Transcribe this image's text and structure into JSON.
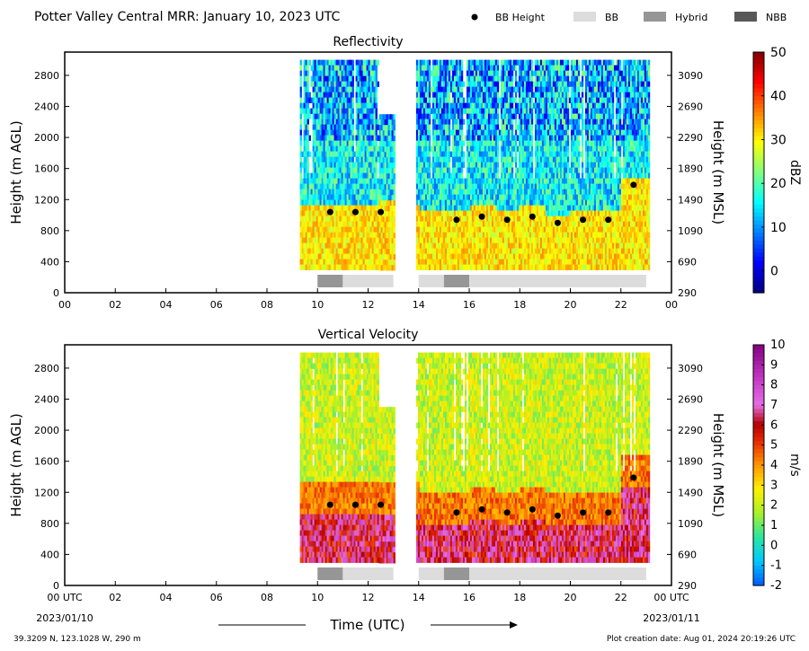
{
  "header": {
    "title": "Potter Valley Central MRR:  January 10, 2023 UTC",
    "legend": [
      {
        "label": "BB Height",
        "kind": "dot",
        "color": "#000000"
      },
      {
        "label": "BB",
        "kind": "rect",
        "color": "#dcdcdc"
      },
      {
        "label": "Hybrid",
        "kind": "rect",
        "color": "#969696"
      },
      {
        "label": "NBB",
        "kind": "rect",
        "color": "#585858"
      }
    ]
  },
  "footer": {
    "location": "39.3209 N, 123.1028 W, 290 m",
    "created": "Plot creation date: Aug 01, 2024 20:19:26 UTC",
    "xlabel": "Time (UTC)",
    "start_date": "2023/01/10",
    "end_date": "2023/01/11"
  },
  "chart_data": [
    {
      "type": "heatmap",
      "title": "Reflectivity",
      "xlabel": "Time (UTC)",
      "ylabel": "Height (m AGL)",
      "ylabel_right": "Height (m MSL)",
      "xticks": [
        "00",
        "02",
        "04",
        "06",
        "08",
        "10",
        "12",
        "14",
        "16",
        "18",
        "20",
        "22",
        "00"
      ],
      "yticks": [
        0,
        400,
        800,
        1200,
        1600,
        2000,
        2400,
        2800
      ],
      "yticks_right": [
        290,
        690,
        1090,
        1490,
        1890,
        2290,
        2690,
        3090
      ],
      "xlim": [
        0,
        24
      ],
      "ylim": [
        0,
        3100
      ],
      "colorbar": {
        "label": "dBZ",
        "range": [
          -5,
          50
        ],
        "ticks": [
          0,
          10,
          20,
          30,
          40,
          50
        ],
        "colormap": "jet"
      },
      "data_segments": [
        [
          9.3,
          13.0
        ],
        [
          13.9,
          23.1
        ]
      ],
      "data_height_range": [
        300,
        3000
      ],
      "bb_height_points": [
        {
          "x": 10.5,
          "y": 1040
        },
        {
          "x": 11.5,
          "y": 1040
        },
        {
          "x": 12.5,
          "y": 1040
        },
        {
          "x": 15.5,
          "y": 940
        },
        {
          "x": 16.5,
          "y": 980
        },
        {
          "x": 17.5,
          "y": 940
        },
        {
          "x": 18.5,
          "y": 980
        },
        {
          "x": 19.5,
          "y": 900
        },
        {
          "x": 20.5,
          "y": 940
        },
        {
          "x": 21.5,
          "y": 940
        },
        {
          "x": 22.5,
          "y": 1390
        }
      ],
      "bb_type_bars": [
        {
          "start": 10.0,
          "end": 11.0,
          "type": "Hybrid"
        },
        {
          "start": 11.0,
          "end": 13.0,
          "type": "BB"
        },
        {
          "start": 14.0,
          "end": 15.0,
          "type": "BB"
        },
        {
          "start": 15.0,
          "end": 16.0,
          "type": "Hybrid"
        },
        {
          "start": 16.0,
          "end": 23.0,
          "type": "BB"
        }
      ]
    },
    {
      "type": "heatmap",
      "title": "Vertical Velocity",
      "xlabel": "Time (UTC)",
      "ylabel": "Height (m AGL)",
      "ylabel_right": "Height (m MSL)",
      "xticks": [
        "00 UTC",
        "02",
        "04",
        "06",
        "08",
        "10",
        "12",
        "14",
        "16",
        "18",
        "20",
        "22",
        "00 UTC"
      ],
      "yticks": [
        0,
        400,
        800,
        1200,
        1600,
        2000,
        2400,
        2800
      ],
      "yticks_right": [
        290,
        690,
        1090,
        1490,
        1890,
        2290,
        2690,
        3090
      ],
      "xlim": [
        0,
        24
      ],
      "ylim": [
        0,
        3100
      ],
      "colorbar": {
        "label": "m/s",
        "range": [
          -2,
          10
        ],
        "ticks": [
          -2,
          -1,
          0,
          1,
          2,
          3,
          4,
          5,
          6,
          7,
          8,
          9,
          10
        ],
        "colormap": "velocity"
      },
      "data_segments": [
        [
          9.3,
          13.0
        ],
        [
          13.9,
          23.1
        ]
      ],
      "data_height_range": [
        300,
        3000
      ],
      "bb_height_points": [
        {
          "x": 10.5,
          "y": 1040
        },
        {
          "x": 11.5,
          "y": 1040
        },
        {
          "x": 12.5,
          "y": 1040
        },
        {
          "x": 15.5,
          "y": 940
        },
        {
          "x": 16.5,
          "y": 980
        },
        {
          "x": 17.5,
          "y": 940
        },
        {
          "x": 18.5,
          "y": 980
        },
        {
          "x": 19.5,
          "y": 900
        },
        {
          "x": 20.5,
          "y": 940
        },
        {
          "x": 21.5,
          "y": 940
        },
        {
          "x": 22.5,
          "y": 1390
        }
      ],
      "bb_type_bars": [
        {
          "start": 10.0,
          "end": 11.0,
          "type": "Hybrid"
        },
        {
          "start": 11.0,
          "end": 13.0,
          "type": "BB"
        },
        {
          "start": 14.0,
          "end": 15.0,
          "type": "BB"
        },
        {
          "start": 15.0,
          "end": 16.0,
          "type": "Hybrid"
        },
        {
          "start": 16.0,
          "end": 23.0,
          "type": "BB"
        }
      ]
    }
  ]
}
